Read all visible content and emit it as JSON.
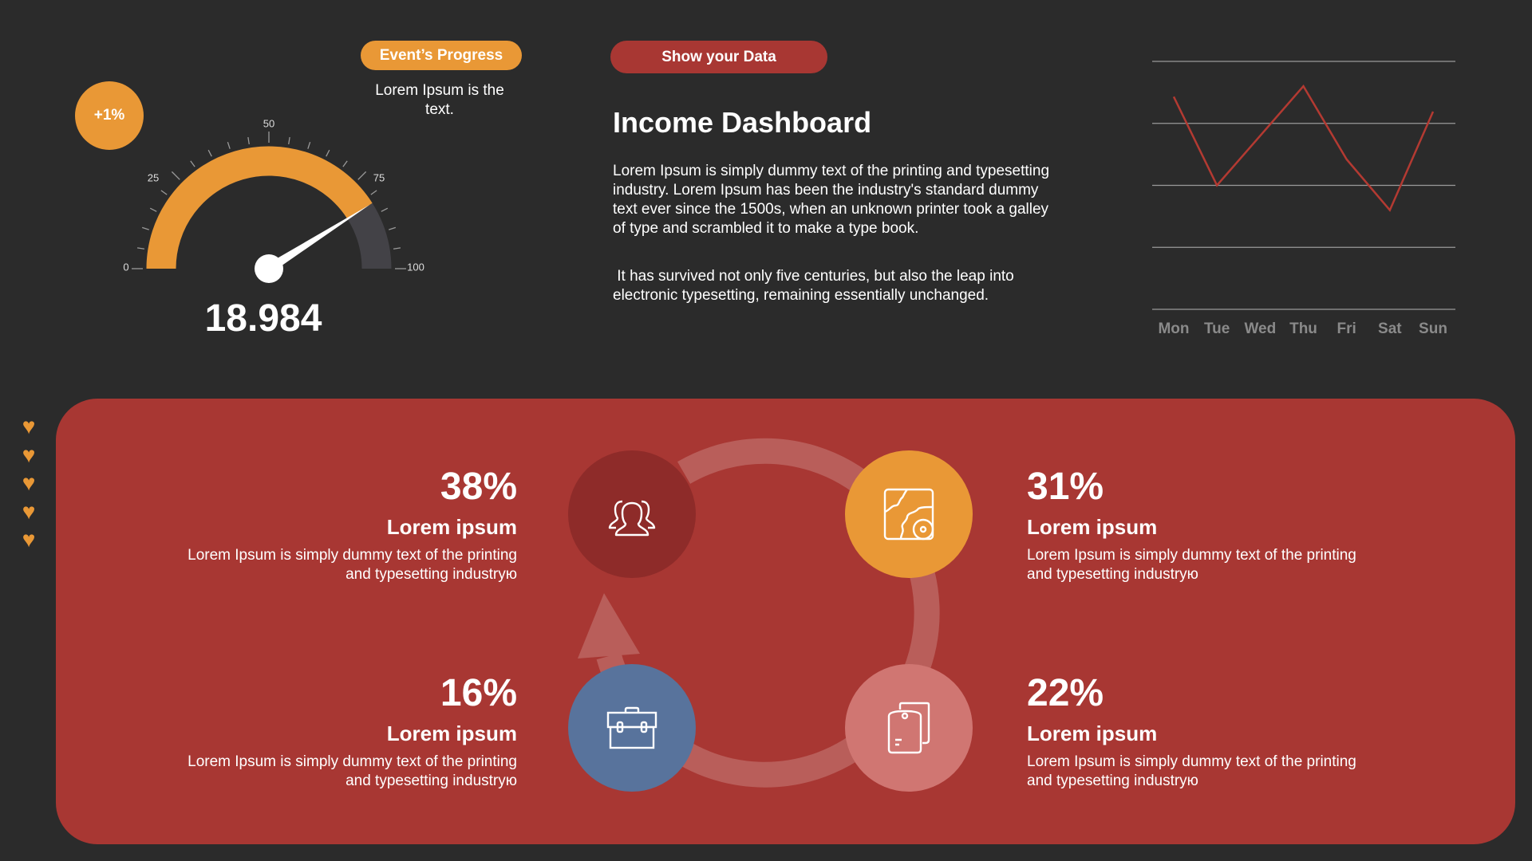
{
  "colors": {
    "background": "#2b2b2b",
    "orange": "#e99836",
    "red": "#a83733",
    "dark_red": "#8e2b29",
    "blue": "#58739c",
    "pink": "#d07672",
    "ring": "#b95e5a",
    "gauge_track": "#434247",
    "line": "#b33a32"
  },
  "badge": {
    "text": "+1%"
  },
  "progress": {
    "label": "Event’s Progress",
    "note": "Lorem Ipsum is the text."
  },
  "gauge": {
    "value_percent": 82,
    "min": 0,
    "max": 100,
    "tick_labels": [
      "0",
      "25",
      "50",
      "75",
      "100"
    ],
    "readout": "18.984"
  },
  "header": {
    "button": "Show your  Data",
    "title": "Income Dashboard",
    "paragraph1": "Lorem Ipsum is simply dummy text of the printing and typesetting industry. Lorem Ipsum has been the industry's standard dummy text ever since the 1500s, when an unknown printer took a galley of type and scrambled it to make a type book.",
    "paragraph2": " It has survived not only five centuries, but also the leap into electronic typesetting, remaining essentially unchanged."
  },
  "chart_data": {
    "type": "line",
    "categories": [
      "Mon",
      "Tue",
      "Wed",
      "Thu",
      "Fri",
      "Sat",
      "Sun"
    ],
    "values": [
      3.43,
      2.0,
      2.8,
      3.6,
      2.42,
      1.6,
      3.19
    ],
    "ylim": [
      0,
      4
    ],
    "grid": true,
    "gridlines": 5,
    "xlabel": "",
    "ylabel": ""
  },
  "hearts": {
    "count": 5,
    "icon": "heart-icon"
  },
  "cycle": [
    {
      "percent": "38%",
      "title": "Lorem ipsum",
      "text": "Lorem Ipsum is simply dummy text of the printing and typesetting industryю",
      "icon": "team-icon",
      "color": "#8e2b29"
    },
    {
      "percent": "31%",
      "title": "Lorem ipsum",
      "text": "Lorem Ipsum is simply dummy text of the printing and typesetting industryю",
      "icon": "map-icon",
      "color": "#e99836"
    },
    {
      "percent": "16%",
      "title": "Lorem ipsum",
      "text": "Lorem Ipsum is simply dummy text of the printing and typesetting industryю",
      "icon": "briefcase-icon",
      "color": "#58739c"
    },
    {
      "percent": "22%",
      "title": "Lorem ipsum",
      "text": "Lorem Ipsum is simply dummy text of the printing and typesetting industryю",
      "icon": "tablet-icon",
      "color": "#d07672"
    }
  ]
}
